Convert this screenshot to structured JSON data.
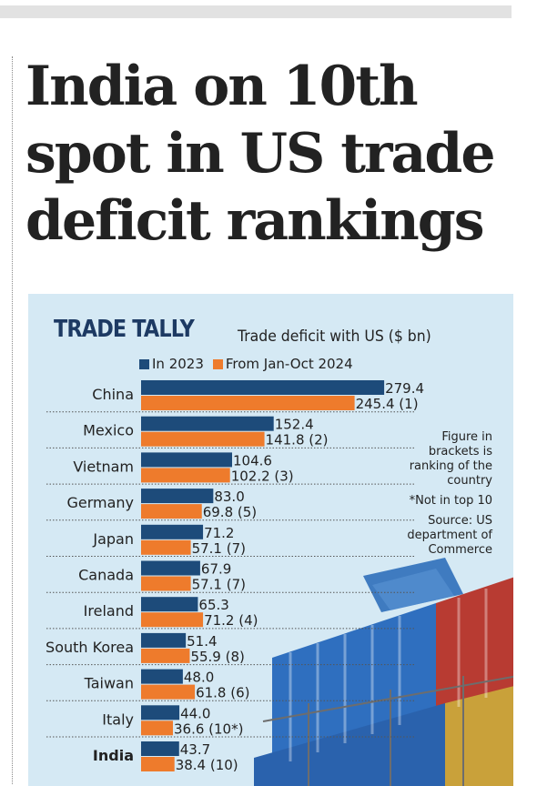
{
  "headline": {
    "line1": "India on 10th",
    "line2": "spot in US trade",
    "line3": "deficit rankings"
  },
  "panel": {
    "title": "TRADE TALLY",
    "subtitle": "Trade deficit with US ($ bn)",
    "notes": [
      "Figure in",
      "brackets is",
      "ranking of the",
      "country",
      "*Not in top 10",
      "Source: US",
      "department of",
      "Commerce"
    ]
  },
  "colors": {
    "blue": "#1d4b7a",
    "orange": "#ee7b2c",
    "panel": "#d5e9f4"
  },
  "chart_data": {
    "type": "bar",
    "orientation": "horizontal",
    "title": "TRADE TALLY",
    "subtitle": "Trade deficit with US ($ bn)",
    "categories": [
      "China",
      "Mexico",
      "Vietnam",
      "Germany",
      "Japan",
      "Canada",
      "Ireland",
      "South Korea",
      "Taiwan",
      "Italy",
      "India"
    ],
    "highlight": "India",
    "series": [
      {
        "name": "In 2023",
        "color": "#1d4b7a",
        "values": [
          279.4,
          152.4,
          104.6,
          83.0,
          71.2,
          67.9,
          65.3,
          51.4,
          48.0,
          44.0,
          43.7
        ],
        "labels": [
          "279.4",
          "152.4",
          "104.6",
          "83.0",
          "71.2",
          "67.9",
          "65.3",
          "51.4",
          "48.0",
          "44.0",
          "43.7"
        ]
      },
      {
        "name": "From Jan-Oct 2024",
        "color": "#ee7b2c",
        "values": [
          245.4,
          141.8,
          102.2,
          69.8,
          57.1,
          57.1,
          71.2,
          55.9,
          61.8,
          36.6,
          38.4
        ],
        "labels": [
          "245.4 (1)",
          "141.8 (2)",
          "102.2 (3)",
          "69.8 (5)",
          "57.1 (7)",
          "57.1 (7)",
          "71.2 (4)",
          "55.9 (8)",
          "61.8 (6)",
          "36.6 (10*)",
          "38.4 (10)"
        ]
      }
    ],
    "grid": false,
    "legend_placement": "top-left"
  }
}
